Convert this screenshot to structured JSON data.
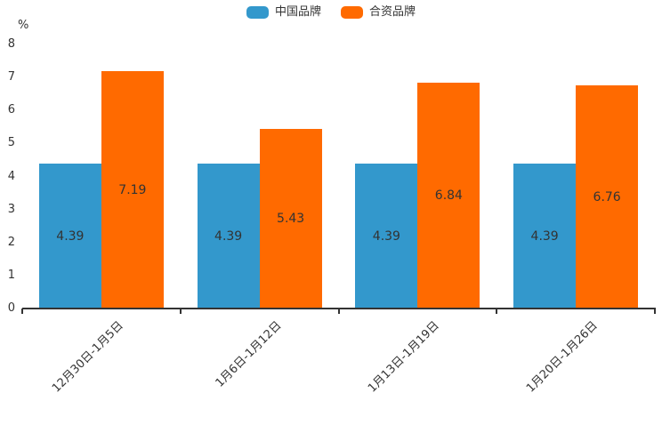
{
  "chart_data": {
    "type": "bar",
    "title": "",
    "categories": [
      "12月30日-1月5日",
      "1月6日-1月12日",
      "1月13日-1月19日",
      "1月20日-1月26日"
    ],
    "series": [
      {
        "name": "中国品牌",
        "color": "#3398CC",
        "values": [
          4.39,
          4.39,
          4.39,
          4.39
        ]
      },
      {
        "name": "合资品牌",
        "color": "#FF6A00",
        "values": [
          7.19,
          5.43,
          6.84,
          6.76
        ]
      }
    ],
    "xlabel": "",
    "ylabel": "%",
    "ylim": [
      0,
      8
    ],
    "y_ticks": [
      0,
      1,
      2,
      3,
      4,
      5,
      6,
      7,
      8
    ],
    "grid": false,
    "legend_position": "top-center",
    "value_labels_shown": true,
    "label_color": "#333333",
    "axis_color": "#333333",
    "background_color": "#ffffff"
  }
}
